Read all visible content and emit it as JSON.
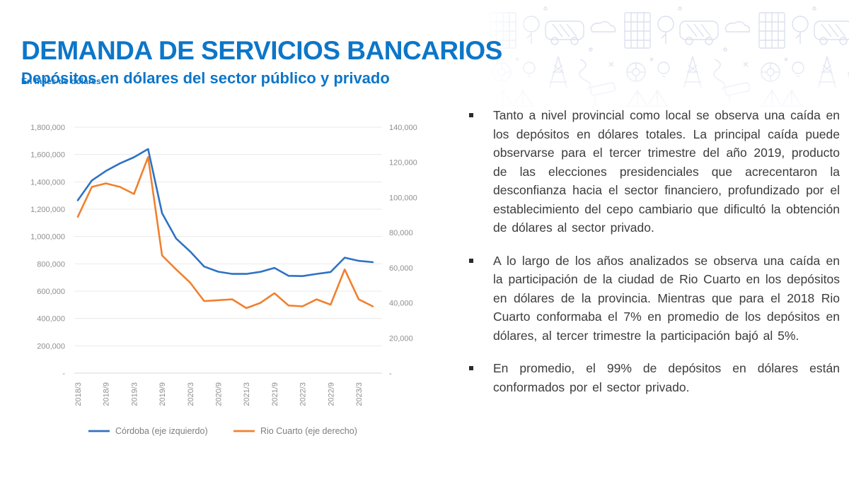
{
  "slide": {
    "title": "DEMANDA DE SERVICIOS BANCARIOS",
    "subtitle": "Depósitos en dólares del sector público y privado",
    "unit_note": "En miles de dólares*"
  },
  "colors": {
    "heading_blue": "#0d76c8",
    "cordoba_line": "#2f72c3",
    "rio_cuarto_line": "#f0802f",
    "axis_text": "#8f8f8f",
    "gridline": "#e9e9e9",
    "axis_line": "#d9d9d9",
    "legend_text": "#7e7e7e",
    "body_text": "#3c3c3c",
    "doodle": "#dce0f0"
  },
  "chart_data": {
    "type": "line",
    "x": [
      "2018/3",
      "2018/6",
      "2018/9",
      "2018/12",
      "2019/3",
      "2019/6",
      "2019/9",
      "2019/12",
      "2020/3",
      "2020/6",
      "2020/9",
      "2020/12",
      "2021/3",
      "2021/6",
      "2021/9",
      "2021/12",
      "2022/3",
      "2022/6",
      "2022/9",
      "2022/12",
      "2023/3",
      "2023/6"
    ],
    "x_tick_labels": [
      "2018/3",
      "2018/9",
      "2019/3",
      "2019/9",
      "2020/3",
      "2020/9",
      "2021/3",
      "2021/9",
      "2022/3",
      "2022/9",
      "2023/3"
    ],
    "series": [
      {
        "name": "Córdoba (eje izquierdo)",
        "axis": "left",
        "color": "#2f72c3",
        "values": [
          1265000,
          1410000,
          1480000,
          1535000,
          1580000,
          1640000,
          1170000,
          985000,
          890000,
          780000,
          742000,
          726000,
          726000,
          741000,
          770000,
          712000,
          710000,
          726000,
          740000,
          845000,
          822000,
          812000
        ]
      },
      {
        "name": "Rio Cuarto (eje derecho)",
        "axis": "right",
        "color": "#f0802f",
        "values": [
          89000,
          106000,
          108000,
          106000,
          102000,
          123000,
          67000,
          59000,
          51500,
          41000,
          41500,
          42000,
          37000,
          40000,
          45500,
          38500,
          38000,
          42000,
          39000,
          59000,
          42000,
          38000
        ]
      }
    ],
    "left_axis": {
      "min": 0,
      "max": 1800000,
      "tick_values": [
        1800000,
        1600000,
        1400000,
        1200000,
        1000000,
        800000,
        600000,
        400000,
        200000
      ],
      "tick_labels": [
        "1,800,000",
        "1,600,000",
        "1,400,000",
        "1,200,000",
        "1,000,000",
        "800,000",
        "600,000",
        "400,000",
        "200,000"
      ],
      "zero_label": "-"
    },
    "right_axis": {
      "min": 0,
      "max": 140000,
      "tick_values": [
        140000,
        120000,
        100000,
        80000,
        60000,
        40000,
        20000
      ],
      "tick_labels": [
        "140,000",
        "120,000",
        "100,000",
        "80,000",
        "60,000",
        "40,000",
        "20,000"
      ],
      "zero_label": "-"
    },
    "grid": true,
    "legend_position": "bottom",
    "title": "Depósitos en dólares del sector público y privado (en miles de dólares)"
  },
  "bullets": [
    {
      "text": "Tanto a nivel provincial como local se observa una caída en los depósitos en dólares totales. La principal caída puede observarse para el tercer trimestre del año 2019, producto de las elecciones presidenciales que acrecentaron la desconfianza hacia el sector financiero, profundizado por el establecimiento del cepo cambiario que dificultó la obtención de dólares al sector privado."
    },
    {
      "text": "A lo largo de los años analizados se observa una caída en la participación de la ciudad de Rio Cuarto en los depósitos en dólares de la provincia. Mientras que para el 2018 Rio Cuarto conformaba el 7% en promedio de los depósitos en dólares, al tercer trimestre la participación bajó al 5%."
    },
    {
      "text": "En promedio, el 99% de depósitos en dólares están conformados por el sector privado."
    }
  ]
}
